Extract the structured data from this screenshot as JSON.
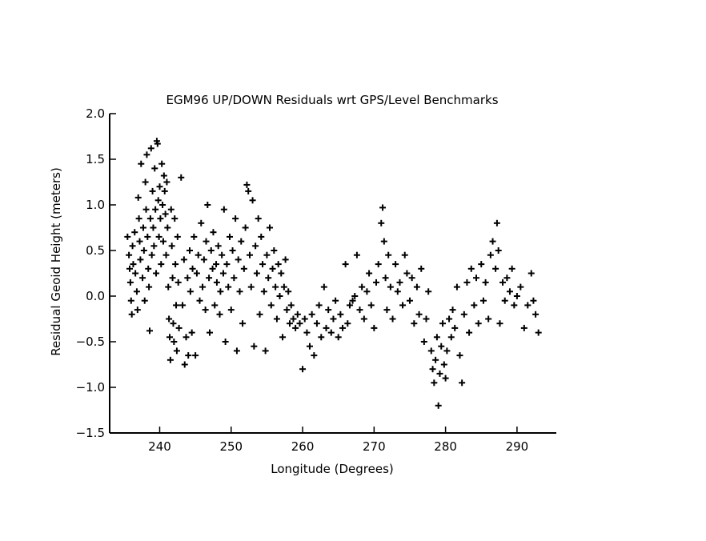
{
  "chart_data": {
    "type": "scatter",
    "title": "EGM96 UP/DOWN Residuals wrt GPS/Level Benchmarks",
    "xlabel": "Longitude (Degrees)",
    "ylabel": "Residual Geoid Height   (meters)",
    "xlim": [
      233.0,
      295.5
    ],
    "ylim": [
      -1.5,
      2.0
    ],
    "xticks": [
      240,
      250,
      260,
      270,
      280,
      290
    ],
    "yticks": [
      -1.5,
      -1.0,
      -0.5,
      0.0,
      0.5,
      1.0,
      1.5,
      2.0
    ],
    "ytick_labels": [
      "−1.5",
      "−1.0",
      "−0.5",
      "0.0",
      "0.5",
      "1.0",
      "1.5",
      "2.0"
    ],
    "marker": "plus",
    "grid": false,
    "legend": "none",
    "series": [
      {
        "name": "",
        "points": [
          [
            235.5,
            0.65
          ],
          [
            235.7,
            0.45
          ],
          [
            235.8,
            0.3
          ],
          [
            235.9,
            0.15
          ],
          [
            236.0,
            -0.05
          ],
          [
            236.1,
            -0.2
          ],
          [
            236.2,
            0.55
          ],
          [
            236.3,
            0.35
          ],
          [
            236.5,
            0.7
          ],
          [
            236.6,
            0.25
          ],
          [
            236.8,
            0.05
          ],
          [
            236.9,
            -0.15
          ],
          [
            237.0,
            1.08
          ],
          [
            237.1,
            0.85
          ],
          [
            237.2,
            0.6
          ],
          [
            237.3,
            0.4
          ],
          [
            237.4,
            1.45
          ],
          [
            237.6,
            0.2
          ],
          [
            237.7,
            0.75
          ],
          [
            237.8,
            0.5
          ],
          [
            237.9,
            -0.05
          ],
          [
            238.0,
            1.25
          ],
          [
            238.1,
            0.95
          ],
          [
            238.2,
            1.55
          ],
          [
            238.3,
            0.65
          ],
          [
            238.4,
            0.3
          ],
          [
            238.5,
            0.1
          ],
          [
            238.6,
            -0.38
          ],
          [
            238.7,
            0.85
          ],
          [
            238.8,
            1.62
          ],
          [
            238.9,
            0.45
          ],
          [
            239.0,
            1.15
          ],
          [
            239.1,
            0.75
          ],
          [
            239.2,
            0.55
          ],
          [
            239.3,
            1.4
          ],
          [
            239.4,
            0.95
          ],
          [
            239.5,
            0.25
          ],
          [
            239.6,
            1.7
          ],
          [
            239.7,
            1.67
          ],
          [
            239.8,
            1.05
          ],
          [
            239.9,
            0.65
          ],
          [
            240.0,
            1.2
          ],
          [
            240.1,
            0.85
          ],
          [
            240.2,
            0.35
          ],
          [
            240.3,
            1.45
          ],
          [
            240.4,
            1.0
          ],
          [
            240.5,
            0.6
          ],
          [
            240.6,
            1.32
          ],
          [
            240.7,
            1.15
          ],
          [
            240.8,
            0.9
          ],
          [
            240.9,
            0.45
          ],
          [
            241.0,
            1.25
          ],
          [
            241.1,
            0.75
          ],
          [
            241.2,
            0.1
          ],
          [
            241.3,
            -0.25
          ],
          [
            241.4,
            -0.45
          ],
          [
            241.5,
            -0.7
          ],
          [
            241.6,
            0.95
          ],
          [
            241.7,
            0.55
          ],
          [
            241.8,
            0.2
          ],
          [
            241.9,
            -0.3
          ],
          [
            242.0,
            -0.5
          ],
          [
            242.1,
            0.85
          ],
          [
            242.2,
            0.35
          ],
          [
            242.3,
            -0.1
          ],
          [
            242.4,
            -0.6
          ],
          [
            242.5,
            0.65
          ],
          [
            242.6,
            0.15
          ],
          [
            242.7,
            -0.35
          ],
          [
            243.0,
            1.3
          ],
          [
            243.2,
            -0.1
          ],
          [
            243.4,
            0.4
          ],
          [
            243.5,
            -0.75
          ],
          [
            243.7,
            -0.45
          ],
          [
            243.9,
            0.2
          ],
          [
            244.0,
            -0.65
          ],
          [
            244.2,
            0.5
          ],
          [
            244.3,
            0.05
          ],
          [
            244.5,
            -0.4
          ],
          [
            244.6,
            0.3
          ],
          [
            244.8,
            0.65
          ],
          [
            245.0,
            -0.65
          ],
          [
            245.2,
            0.25
          ],
          [
            245.4,
            0.45
          ],
          [
            245.6,
            -0.05
          ],
          [
            245.8,
            0.8
          ],
          [
            246.0,
            0.1
          ],
          [
            246.2,
            0.4
          ],
          [
            246.4,
            -0.15
          ],
          [
            246.5,
            0.6
          ],
          [
            246.7,
            1.0
          ],
          [
            246.9,
            0.2
          ],
          [
            247.0,
            -0.4
          ],
          [
            247.2,
            0.5
          ],
          [
            247.4,
            0.3
          ],
          [
            247.5,
            0.7
          ],
          [
            247.7,
            -0.1
          ],
          [
            247.9,
            0.35
          ],
          [
            248.0,
            0.15
          ],
          [
            248.2,
            0.55
          ],
          [
            248.4,
            -0.2
          ],
          [
            248.5,
            0.05
          ],
          [
            248.7,
            0.45
          ],
          [
            248.9,
            0.25
          ],
          [
            249.0,
            0.95
          ],
          [
            249.2,
            -0.5
          ],
          [
            249.4,
            0.35
          ],
          [
            249.6,
            0.1
          ],
          [
            249.8,
            0.65
          ],
          [
            250.0,
            -0.15
          ],
          [
            250.2,
            0.5
          ],
          [
            250.4,
            0.2
          ],
          [
            250.6,
            0.85
          ],
          [
            250.8,
            -0.6
          ],
          [
            251.0,
            0.4
          ],
          [
            251.2,
            0.05
          ],
          [
            251.4,
            0.6
          ],
          [
            251.6,
            -0.3
          ],
          [
            251.8,
            0.3
          ],
          [
            252.0,
            0.75
          ],
          [
            252.2,
            1.22
          ],
          [
            252.4,
            1.15
          ],
          [
            252.6,
            0.45
          ],
          [
            252.8,
            0.1
          ],
          [
            253.0,
            1.05
          ],
          [
            253.2,
            -0.55
          ],
          [
            253.4,
            0.55
          ],
          [
            253.6,
            0.25
          ],
          [
            253.8,
            0.85
          ],
          [
            254.0,
            -0.2
          ],
          [
            254.2,
            0.65
          ],
          [
            254.4,
            0.35
          ],
          [
            254.6,
            0.05
          ],
          [
            254.8,
            -0.6
          ],
          [
            255.0,
            0.45
          ],
          [
            255.2,
            0.2
          ],
          [
            255.4,
            0.75
          ],
          [
            255.6,
            -0.1
          ],
          [
            255.8,
            0.3
          ],
          [
            256.0,
            0.5
          ],
          [
            256.2,
            0.1
          ],
          [
            256.4,
            -0.25
          ],
          [
            256.6,
            0.35
          ],
          [
            256.8,
            0.0
          ],
          [
            257.0,
            0.25
          ],
          [
            257.2,
            -0.45
          ],
          [
            257.4,
            0.1
          ],
          [
            257.6,
            0.4
          ],
          [
            257.8,
            -0.15
          ],
          [
            258.0,
            0.05
          ],
          [
            258.2,
            -0.3
          ],
          [
            258.4,
            -0.1
          ],
          [
            258.7,
            -0.25
          ],
          [
            259.0,
            -0.35
          ],
          [
            259.3,
            -0.2
          ],
          [
            259.6,
            -0.3
          ],
          [
            260.0,
            -0.8
          ],
          [
            260.3,
            -0.25
          ],
          [
            260.6,
            -0.4
          ],
          [
            261.0,
            -0.55
          ],
          [
            261.3,
            -0.2
          ],
          [
            261.6,
            -0.65
          ],
          [
            262.0,
            -0.3
          ],
          [
            262.3,
            -0.1
          ],
          [
            262.6,
            -0.45
          ],
          [
            263.0,
            0.1
          ],
          [
            263.3,
            -0.35
          ],
          [
            263.6,
            -0.15
          ],
          [
            264.0,
            -0.4
          ],
          [
            264.3,
            -0.25
          ],
          [
            264.6,
            -0.05
          ],
          [
            265.0,
            -0.45
          ],
          [
            265.3,
            -0.2
          ],
          [
            265.6,
            -0.35
          ],
          [
            266.0,
            0.35
          ],
          [
            266.3,
            -0.3
          ],
          [
            266.6,
            -0.1
          ],
          [
            267.0,
            -0.05
          ],
          [
            267.3,
            0.0
          ],
          [
            267.6,
            0.45
          ],
          [
            268.0,
            -0.15
          ],
          [
            268.3,
            0.1
          ],
          [
            268.6,
            -0.25
          ],
          [
            269.0,
            0.05
          ],
          [
            269.3,
            0.25
          ],
          [
            269.6,
            -0.1
          ],
          [
            270.0,
            -0.35
          ],
          [
            270.3,
            0.15
          ],
          [
            270.6,
            0.35
          ],
          [
            271.0,
            0.8
          ],
          [
            271.2,
            0.97
          ],
          [
            271.4,
            0.6
          ],
          [
            271.6,
            0.2
          ],
          [
            271.8,
            -0.15
          ],
          [
            272.0,
            0.45
          ],
          [
            272.3,
            0.1
          ],
          [
            272.6,
            -0.25
          ],
          [
            273.0,
            0.35
          ],
          [
            273.3,
            0.05
          ],
          [
            273.6,
            0.15
          ],
          [
            274.0,
            -0.1
          ],
          [
            274.3,
            0.45
          ],
          [
            274.6,
            0.25
          ],
          [
            275.0,
            -0.05
          ],
          [
            275.3,
            0.2
          ],
          [
            275.6,
            -0.3
          ],
          [
            276.0,
            0.1
          ],
          [
            276.3,
            -0.2
          ],
          [
            276.6,
            0.3
          ],
          [
            277.0,
            -0.5
          ],
          [
            277.3,
            -0.25
          ],
          [
            277.6,
            0.05
          ],
          [
            278.0,
            -0.6
          ],
          [
            278.2,
            -0.8
          ],
          [
            278.4,
            -0.95
          ],
          [
            278.6,
            -0.7
          ],
          [
            278.8,
            -0.45
          ],
          [
            279.0,
            -1.2
          ],
          [
            279.2,
            -0.85
          ],
          [
            279.4,
            -0.55
          ],
          [
            279.6,
            -0.3
          ],
          [
            279.8,
            -0.75
          ],
          [
            280.0,
            -0.9
          ],
          [
            280.2,
            -0.6
          ],
          [
            280.5,
            -0.25
          ],
          [
            280.8,
            -0.45
          ],
          [
            281.0,
            -0.15
          ],
          [
            281.3,
            -0.35
          ],
          [
            281.6,
            0.1
          ],
          [
            282.0,
            -0.65
          ],
          [
            282.3,
            -0.95
          ],
          [
            282.6,
            -0.2
          ],
          [
            283.0,
            0.15
          ],
          [
            283.3,
            -0.4
          ],
          [
            283.6,
            0.3
          ],
          [
            284.0,
            -0.1
          ],
          [
            284.3,
            0.2
          ],
          [
            284.6,
            -0.3
          ],
          [
            285.0,
            0.35
          ],
          [
            285.3,
            -0.05
          ],
          [
            285.6,
            0.15
          ],
          [
            286.0,
            -0.25
          ],
          [
            286.3,
            0.45
          ],
          [
            286.6,
            0.6
          ],
          [
            287.0,
            0.3
          ],
          [
            287.2,
            0.8
          ],
          [
            287.4,
            0.5
          ],
          [
            287.6,
            -0.3
          ],
          [
            288.0,
            0.15
          ],
          [
            288.3,
            -0.05
          ],
          [
            288.6,
            0.2
          ],
          [
            289.0,
            0.05
          ],
          [
            289.3,
            0.3
          ],
          [
            289.6,
            -0.1
          ],
          [
            290.0,
            0.0
          ],
          [
            290.5,
            0.1
          ],
          [
            291.0,
            -0.35
          ],
          [
            291.5,
            -0.1
          ],
          [
            292.0,
            0.25
          ],
          [
            292.3,
            -0.05
          ],
          [
            292.6,
            -0.2
          ],
          [
            293.0,
            -0.4
          ]
        ]
      }
    ]
  }
}
